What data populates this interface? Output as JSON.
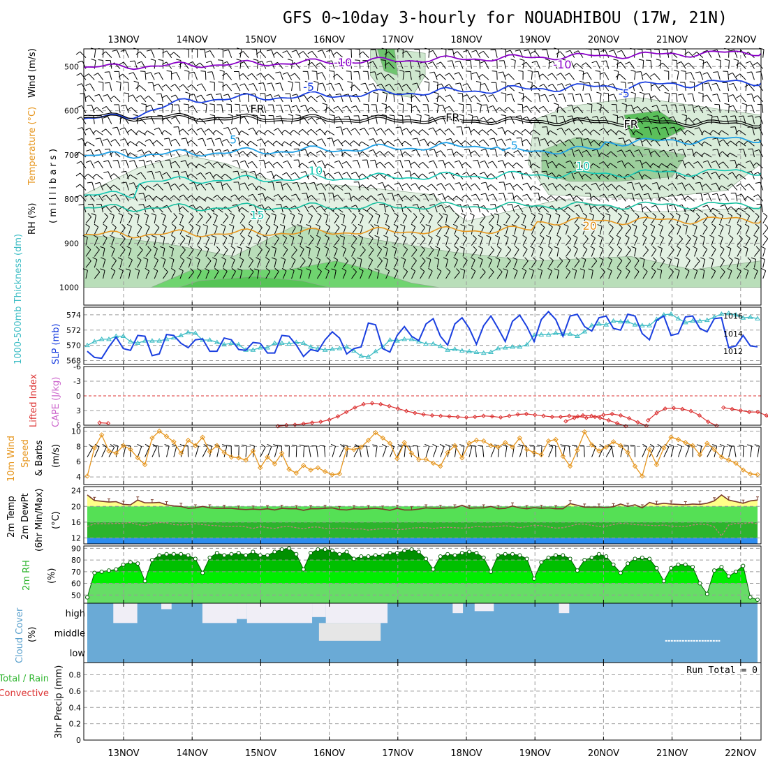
{
  "chart_data": {
    "type": "line",
    "title": "GFS 0~10day 3-hourly for NOUADHIBOU (17W, 21N)",
    "dates": [
      "13NOV",
      "14NOV",
      "15NOV",
      "16NOV",
      "17NOV",
      "18NOV",
      "19NOV",
      "20NOV",
      "21NOV",
      "22NOV"
    ],
    "colors": {
      "purple": "#8a00c8",
      "blue": "#1a3fe0",
      "lightblue": "#1ea0e6",
      "teal": "#14c8b4",
      "orange": "#e6961e",
      "red": "#dc3232",
      "green": "#2cd22c",
      "rhgreen": "#35b24a",
      "sky": "#6aaad6",
      "yellow": "#ffff88",
      "cyan": "#3cbcc4"
    },
    "panels": {
      "profile": {
        "ylabel_wind": "Wind (m/s)",
        "ylabel_temp": "Temperature (°C)",
        "ylabel_rh": "RH (%)",
        "ylabel_p": "( m i l l i b a r s )",
        "yticks": [
          "500",
          "600",
          "700",
          "800",
          "900",
          "1000"
        ],
        "ylim": [
          460,
          1040
        ],
        "contour_labels": [
          {
            "text": "-10",
            "day": 3.2,
            "p": 490,
            "c": "purple"
          },
          {
            "text": "-10",
            "day": 6.4,
            "p": 495,
            "c": "purple"
          },
          {
            "text": "-5",
            "day": 2.7,
            "p": 545,
            "c": "blue"
          },
          {
            "text": "-5",
            "day": 7.3,
            "p": 560,
            "c": "blue"
          },
          {
            "text": "FR",
            "day": 1.95,
            "p": 595,
            "c": "black"
          },
          {
            "text": "FR",
            "day": 4.8,
            "p": 615,
            "c": "black"
          },
          {
            "text": "FR",
            "day": 7.4,
            "p": 630,
            "c": "black"
          },
          {
            "text": "5",
            "day": 1.6,
            "p": 665,
            "c": "lightblue"
          },
          {
            "text": "5",
            "day": 5.7,
            "p": 678,
            "c": "lightblue"
          },
          {
            "text": "10",
            "day": 2.8,
            "p": 735,
            "c": "teal"
          },
          {
            "text": "10",
            "day": 6.7,
            "p": 725,
            "c": "teal"
          },
          {
            "text": "15",
            "day": 1.95,
            "p": 835,
            "c": "teal"
          },
          {
            "text": "20",
            "day": 6.8,
            "p": 860,
            "c": "orange"
          }
        ]
      },
      "slp": {
        "ylabel_thick": "1000-500mb Thickness (dm)",
        "ylabel_slp": "SLP (mb)",
        "left_ticks": [
          "574",
          "572",
          "570",
          "568"
        ],
        "right_ticks": [
          "1016",
          "1014",
          "1012"
        ],
        "slp_range": [
          1010.5,
          1017
        ],
        "thick_range": [
          567.5,
          575
        ],
        "slp": [
          1012.0,
          1011.3,
          1011.2,
          1012.5,
          1013.6,
          1012.3,
          1012.1,
          1013.8,
          1013.7,
          1011.5,
          1011.7,
          1013.9,
          1013.8,
          1012.9,
          1012.4,
          1013.3,
          1013.4,
          1012.0,
          1012.0,
          1013.5,
          1013.3,
          1012.2,
          1012.1,
          1013.0,
          1012.9,
          1011.8,
          1011.8,
          1013.8,
          1013.7,
          1012.7,
          1011.4,
          1012.2,
          1012.0,
          1013.3,
          1014.2,
          1013.5,
          1011.7,
          1012.3,
          1012.5,
          1015.2,
          1015.0,
          1012.3,
          1011.9,
          1013.8,
          1014.8,
          1013.7,
          1013.2,
          1015.1,
          1015.7,
          1013.7,
          1012.7,
          1015.1,
          1015.8,
          1014.6,
          1012.8,
          1014.9,
          1016.0,
          1014.6,
          1013.1,
          1015.4,
          1016.1,
          1014.8,
          1013.1,
          1015.6,
          1016.5,
          1015.6,
          1013.7,
          1016.0,
          1016.2,
          1014.8,
          1014.3,
          1015.8,
          1016.0,
          1014.6,
          1014.4,
          1016.2,
          1016.0,
          1014.0,
          1013.3,
          1015.5,
          1016.0,
          1013.8,
          1014.0,
          1015.9,
          1016.0,
          1014.6,
          1014.2,
          1015.7,
          1015.8,
          1012.4,
          1012.6,
          1013.8,
          1012.6,
          1012.5
        ],
        "thick": [
          570.0,
          570.5,
          570.8,
          570.8,
          571.2,
          571.2,
          570.5,
          570.3,
          570.6,
          570.6,
          570.6,
          570.8,
          571.0,
          571.3,
          571.7,
          571.6,
          570.7,
          570.7,
          570.4,
          570.1,
          570.3,
          570.1,
          569.4,
          569.4,
          569.7,
          569.7,
          570.3,
          570.3,
          570.2,
          570.4,
          570.3,
          569.8,
          569.6,
          569.4,
          569.5,
          569.6,
          569.8,
          569.3,
          568.6,
          568.5,
          569.2,
          569.8,
          570.7,
          570.6,
          570.8,
          570.8,
          570.5,
          570.2,
          570.2,
          569.9,
          569.4,
          569.5,
          569.3,
          569.2,
          569.1,
          569.0,
          569.1,
          569.6,
          569.7,
          569.8,
          569.8,
          570.1,
          571.3,
          571.4,
          571.4,
          571.6,
          571.5,
          571.5,
          571.2,
          571.8,
          572.6,
          572.8,
          572.7,
          573.2,
          573.1,
          573.1,
          572.7,
          572.6,
          572.6,
          573.4,
          574.0,
          574.1,
          573.5,
          573.0,
          573.2,
          573.2,
          573.3,
          573.7,
          574.1,
          574.2,
          574.0,
          573.6,
          573.7,
          573.5
        ]
      },
      "li": {
        "ylabel_li": "Lifted Index",
        "ylabel_cape": "CAPE (J/kg)",
        "yticks": [
          "-6",
          "-3",
          "0",
          "3",
          "6"
        ],
        "segments": [
          {
            "start": 0.2,
            "values": [
              5.5,
              5.6
            ]
          },
          {
            "start": 2.8,
            "values": [
              6.2,
              6.0,
              5.9,
              5.7,
              5.5,
              5.3,
              4.9,
              4.2,
              3.3,
              2.4,
              1.7,
              1.5,
              1.7,
              2.1,
              2.6,
              3.1,
              3.5,
              3.8,
              4.0,
              4.1,
              4.2,
              4.3,
              4.4,
              4.3,
              4.1,
              4.2,
              4.4,
              4.1,
              3.8,
              3.7,
              3.9,
              4.1,
              4.3,
              4.3,
              4.1,
              4.2,
              4.5,
              4.3,
              3.9,
              3.7,
              4.0,
              4.6,
              5.4,
              6.1
            ]
          },
          {
            "start": 7.0,
            "values": [
              5.2,
              4.5,
              4.0,
              4.1,
              4.5,
              5.0,
              5.6,
              6.2
            ]
          },
          {
            "start": 8.2,
            "values": [
              5.0,
              3.5,
              2.6,
              2.5,
              2.7,
              3.1,
              4.0,
              5.3,
              6.1
            ]
          },
          {
            "start": 9.3,
            "values": [
              2.4,
              2.7,
              3.0,
              3.3,
              3.3,
              4.0,
              5.5
            ]
          }
        ]
      },
      "wind": {
        "ylabel1": "10m Wind",
        "ylabel2": "Speed",
        "ylabel3": "& Barbs",
        "ylabel4": "(m/s)",
        "yticks": [
          "10",
          "8",
          "6",
          "4"
        ],
        "ylim": [
          3,
          10.5
        ],
        "speed": [
          4.1,
          7.8,
          9.5,
          7.4,
          7.1,
          8.1,
          7.6,
          6.5,
          5.6,
          9.1,
          10.0,
          9.3,
          8.6,
          7.1,
          8.8,
          8.1,
          9.2,
          7.3,
          8.1,
          7.2,
          6.6,
          6.5,
          6.2,
          7.4,
          5.2,
          6.6,
          5.7,
          7.1,
          5.0,
          4.5,
          5.5,
          4.9,
          5.2,
          4.7,
          4.3,
          4.4,
          7.7,
          7.6,
          7.9,
          8.8,
          9.8,
          9.1,
          8.4,
          6.4,
          8.5,
          7.1,
          6.3,
          6.3,
          5.8,
          5.4,
          7.2,
          8.1,
          6.5,
          8.4,
          8.8,
          8.7,
          8.1,
          7.9,
          8.5,
          7.9,
          9.1,
          7.6,
          7.2,
          6.9,
          8.7,
          8.9,
          6.7,
          5.4,
          7.5,
          9.9,
          8.2,
          7.4,
          7.9,
          8.6,
          8.1,
          7.2,
          5.4,
          4.1,
          7.6,
          5.6,
          7.8,
          9.2,
          8.9,
          8.5,
          8.1,
          6.9,
          8.4,
          7.6,
          6.6,
          6.2,
          5.8,
          4.9,
          4.4,
          4.3
        ]
      },
      "temp": {
        "ylabel1": "2m Temp",
        "ylabel2": "2m DewPt",
        "ylabel3": "(6hr Min/Max)",
        "ylabel4": "(°C)",
        "yticks": [
          "24",
          "20",
          "16",
          "12"
        ],
        "ylim": [
          10.5,
          25
        ],
        "temp": [
          22.9,
          21.5,
          21.3,
          21.1,
          21.2,
          20.5,
          20.4,
          21.6,
          20.9,
          20.9,
          21.0,
          20.4,
          20.1,
          20.0,
          19.5,
          19.6,
          20.0,
          19.6,
          19.5,
          19.5,
          19.5,
          19.3,
          19.2,
          19.3,
          19.2,
          19.4,
          19.1,
          19.5,
          19.4,
          19.4,
          19.0,
          19.4,
          19.4,
          19.5,
          19.6,
          19.2,
          19.1,
          19.4,
          19.3,
          19.4,
          19.5,
          19.3,
          19.0,
          19.5,
          19.1,
          19.1,
          19.3,
          19.6,
          19.5,
          19.5,
          19.6,
          19.6,
          20.3,
          19.5,
          19.6,
          19.6,
          20.0,
          19.4,
          19.5,
          20.1,
          19.6,
          19.4,
          19.7,
          19.5,
          19.6,
          19.4,
          19.4,
          20.7,
          20.3,
          19.8,
          19.8,
          19.8,
          19.7,
          19.9,
          20.6,
          20.0,
          20.4,
          19.6,
          21.0,
          20.5,
          20.8,
          20.6,
          20.5,
          20.4,
          20.6,
          20.5,
          20.8,
          21.4,
          22.9,
          21.6,
          21.2,
          20.8,
          21.4,
          21.6
        ],
        "dew": [
          14.9,
          15.6,
          15.6,
          15.6,
          15.7,
          15.7,
          15.9,
          15.4,
          15.1,
          15.6,
          15.9,
          15.8,
          15.4,
          15.3,
          15.4,
          15.6,
          15.4,
          15.2,
          15.1,
          14.9,
          14.9,
          15.0,
          14.8,
          14.4,
          14.9,
          14.6,
          14.4,
          14.8,
          14.9,
          14.6,
          14.3,
          14.7,
          14.8,
          14.4,
          14.4,
          14.5,
          14.5,
          14.2,
          14.3,
          14.0,
          14.2,
          14.4,
          14.3,
          14.1,
          14.2,
          14.5,
          14.6,
          14.6,
          14.4,
          14.6,
          14.7,
          14.6,
          14.5,
          14.6,
          14.9,
          14.8,
          14.8,
          14.9,
          15.1,
          14.9,
          14.6,
          14.9,
          15.2,
          15.1,
          14.8,
          14.5,
          14.6,
          15.0,
          15.5,
          15.5,
          15.2,
          14.9,
          15.0,
          15.4,
          15.7,
          15.6,
          15.4,
          15.3,
          15.2,
          15.1,
          15.3,
          15.0,
          14.9,
          14.9,
          15.3,
          15.5,
          15.4,
          14.8,
          12.5,
          15.3,
          15.7,
          15.6,
          15.9,
          15.6
        ]
      },
      "rh": {
        "ylabel1": "2m RH",
        "ylabel2": "(%)",
        "yticks": [
          "90",
          "80",
          "70",
          "60",
          "50"
        ],
        "ylim": [
          43,
          92
        ],
        "values": [
          48,
          69,
          70,
          71,
          72,
          76,
          78,
          77,
          62,
          80,
          84,
          85,
          85,
          85,
          84,
          81,
          69,
          82,
          86,
          84,
          85,
          86,
          84,
          87,
          84,
          84,
          87,
          89,
          90,
          85,
          72,
          86,
          89,
          89,
          88,
          85,
          87,
          81,
          83,
          83,
          84,
          84,
          86,
          86,
          88,
          89,
          87,
          81,
          72,
          83,
          85,
          84,
          86,
          87,
          86,
          82,
          70,
          84,
          85,
          85,
          84,
          81,
          64,
          78,
          82,
          84,
          84,
          81,
          71,
          80,
          82,
          85,
          83,
          76,
          69,
          77,
          81,
          82,
          81,
          73,
          62,
          73,
          76,
          76,
          74,
          60,
          51,
          71,
          74,
          66,
          70,
          75,
          48,
          46
        ]
      },
      "cloud": {
        "ylabel1": "Cloud Cover",
        "ylabel2": "(%)",
        "level_labels": [
          "high",
          "middle",
          "low"
        ],
        "high_gaps": [
          {
            "from": 0.35,
            "to": 0.7,
            "depth": 1.0
          },
          {
            "from": 1.05,
            "to": 1.2,
            "depth": 0.3
          },
          {
            "from": 1.65,
            "to": 2.15,
            "depth": 1.0
          },
          {
            "from": 2.15,
            "to": 2.3,
            "depth": 0.8
          },
          {
            "from": 2.3,
            "to": 3.25,
            "depth": 1.0
          },
          {
            "from": 3.25,
            "to": 3.45,
            "depth": 0.7
          },
          {
            "from": 3.45,
            "to": 4.35,
            "depth": 1.0
          },
          {
            "from": 5.3,
            "to": 5.45,
            "depth": 0.5
          },
          {
            "from": 5.62,
            "to": 5.9,
            "depth": 0.4
          },
          {
            "from": 6.85,
            "to": 7.0,
            "depth": 0.5
          }
        ],
        "mid_gaps": [
          {
            "from": 3.35,
            "to": 4.25,
            "depth": 0.9
          }
        ]
      },
      "precip": {
        "ylabel1": "Total / Rain",
        "ylabel2": "Convective",
        "ylabel3": "3hr Precip (mm)",
        "yticks": [
          "0.8",
          "0.6",
          "0.4",
          "0.2",
          "0"
        ],
        "run_total_label": "Run Total = 0",
        "values": []
      }
    }
  }
}
